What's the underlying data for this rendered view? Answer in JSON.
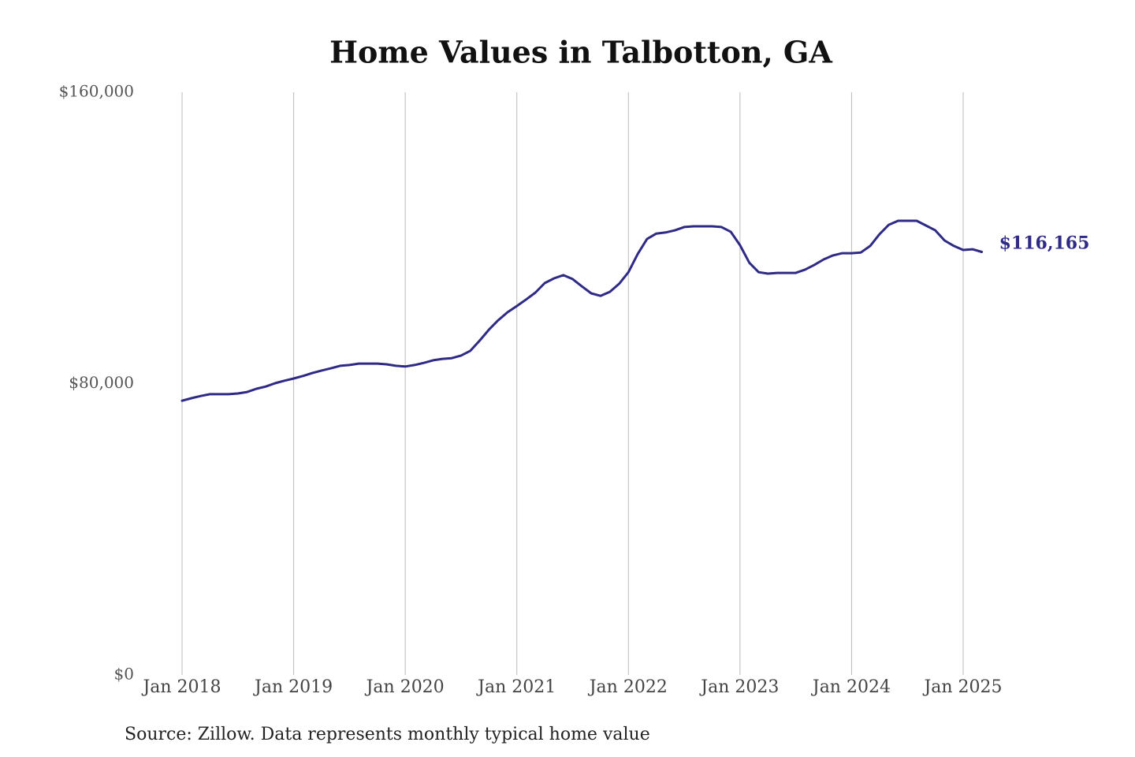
{
  "chart_data": {
    "type": "line",
    "title": "Home Values in Talbotton, GA",
    "source": "Source: Zillow. Data represents monthly typical home value",
    "x": [
      "2018-01",
      "2018-02",
      "2018-03",
      "2018-04",
      "2018-05",
      "2018-06",
      "2018-07",
      "2018-08",
      "2018-09",
      "2018-10",
      "2018-11",
      "2018-12",
      "2019-01",
      "2019-02",
      "2019-03",
      "2019-04",
      "2019-05",
      "2019-06",
      "2019-07",
      "2019-08",
      "2019-09",
      "2019-10",
      "2019-11",
      "2019-12",
      "2020-01",
      "2020-02",
      "2020-03",
      "2020-04",
      "2020-05",
      "2020-06",
      "2020-07",
      "2020-08",
      "2020-09",
      "2020-10",
      "2020-11",
      "2020-12",
      "2021-01",
      "2021-02",
      "2021-03",
      "2021-04",
      "2021-05",
      "2021-06",
      "2021-07",
      "2021-08",
      "2021-09",
      "2021-10",
      "2021-11",
      "2021-12",
      "2022-01",
      "2022-02",
      "2022-03",
      "2022-04",
      "2022-05",
      "2022-06",
      "2022-07",
      "2022-08",
      "2022-09",
      "2022-10",
      "2022-11",
      "2022-12",
      "2023-01",
      "2023-02",
      "2023-03",
      "2023-04",
      "2023-05",
      "2023-06",
      "2023-07",
      "2023-08",
      "2023-09",
      "2023-10",
      "2023-11",
      "2023-12",
      "2024-01",
      "2024-02",
      "2024-03",
      "2024-04",
      "2024-05",
      "2024-06",
      "2024-07",
      "2024-08",
      "2024-09",
      "2024-10",
      "2024-11",
      "2024-12",
      "2025-01",
      "2025-02",
      "2025-03"
    ],
    "series": [
      {
        "color": "#2e2a85",
        "values": [
          75300,
          76000,
          76600,
          77100,
          77100,
          77100,
          77300,
          77700,
          78600,
          79200,
          80100,
          80800,
          81400,
          82100,
          82900,
          83600,
          84200,
          84900,
          85100,
          85500,
          85500,
          85500,
          85300,
          84900,
          84700,
          85100,
          85700,
          86400,
          86800,
          87000,
          87700,
          89000,
          91800,
          94800,
          97400,
          99600,
          101300,
          103100,
          105000,
          107600,
          108900,
          109800,
          108700,
          106700,
          104800,
          104100,
          105200,
          107400,
          110600,
          115600,
          119700,
          121200,
          121500,
          122100,
          123000,
          123200,
          123200,
          123200,
          123000,
          121700,
          118000,
          113200,
          110600,
          110200,
          110400,
          110400,
          110400,
          111300,
          112600,
          114100,
          115200,
          115800,
          115800,
          116000,
          117800,
          121000,
          123600,
          124700,
          124700,
          124700,
          123400,
          122100,
          119300,
          117800,
          116700,
          116900,
          116165
        ],
        "value_labels": [
          null,
          null,
          null,
          null,
          null,
          null,
          null,
          null,
          null,
          null,
          null,
          null,
          null,
          null,
          null,
          null,
          null,
          null,
          null,
          null,
          null,
          null,
          null,
          null,
          null,
          null,
          null,
          null,
          null,
          null,
          null,
          null,
          null,
          null,
          null,
          null,
          null,
          null,
          null,
          null,
          null,
          null,
          null,
          null,
          null,
          null,
          null,
          null,
          null,
          null,
          null,
          null,
          null,
          null,
          null,
          null,
          null,
          null,
          null,
          null,
          null,
          null,
          null,
          null,
          null,
          null,
          null,
          null,
          null,
          null,
          null,
          null,
          null,
          null,
          null,
          null,
          null,
          null,
          null,
          null,
          null,
          null,
          null,
          null,
          null,
          null,
          "$116,165"
        ]
      }
    ],
    "ylim": [
      0,
      160000
    ],
    "yticks": [
      {
        "value": 0,
        "label": "$0"
      },
      {
        "value": 80000,
        "label": "$80,000"
      },
      {
        "value": 160000,
        "label": "$160,000"
      }
    ],
    "xticks": [
      {
        "value": "2018-01",
        "label": "Jan 2018"
      },
      {
        "value": "2019-01",
        "label": "Jan 2019"
      },
      {
        "value": "2020-01",
        "label": "Jan 2020"
      },
      {
        "value": "2021-01",
        "label": "Jan 2021"
      },
      {
        "value": "2022-01",
        "label": "Jan 2022"
      },
      {
        "value": "2023-01",
        "label": "Jan 2023"
      },
      {
        "value": "2024-01",
        "label": "Jan 2024"
      },
      {
        "value": "2025-01",
        "label": "Jan 2025"
      }
    ],
    "grid": "x"
  }
}
